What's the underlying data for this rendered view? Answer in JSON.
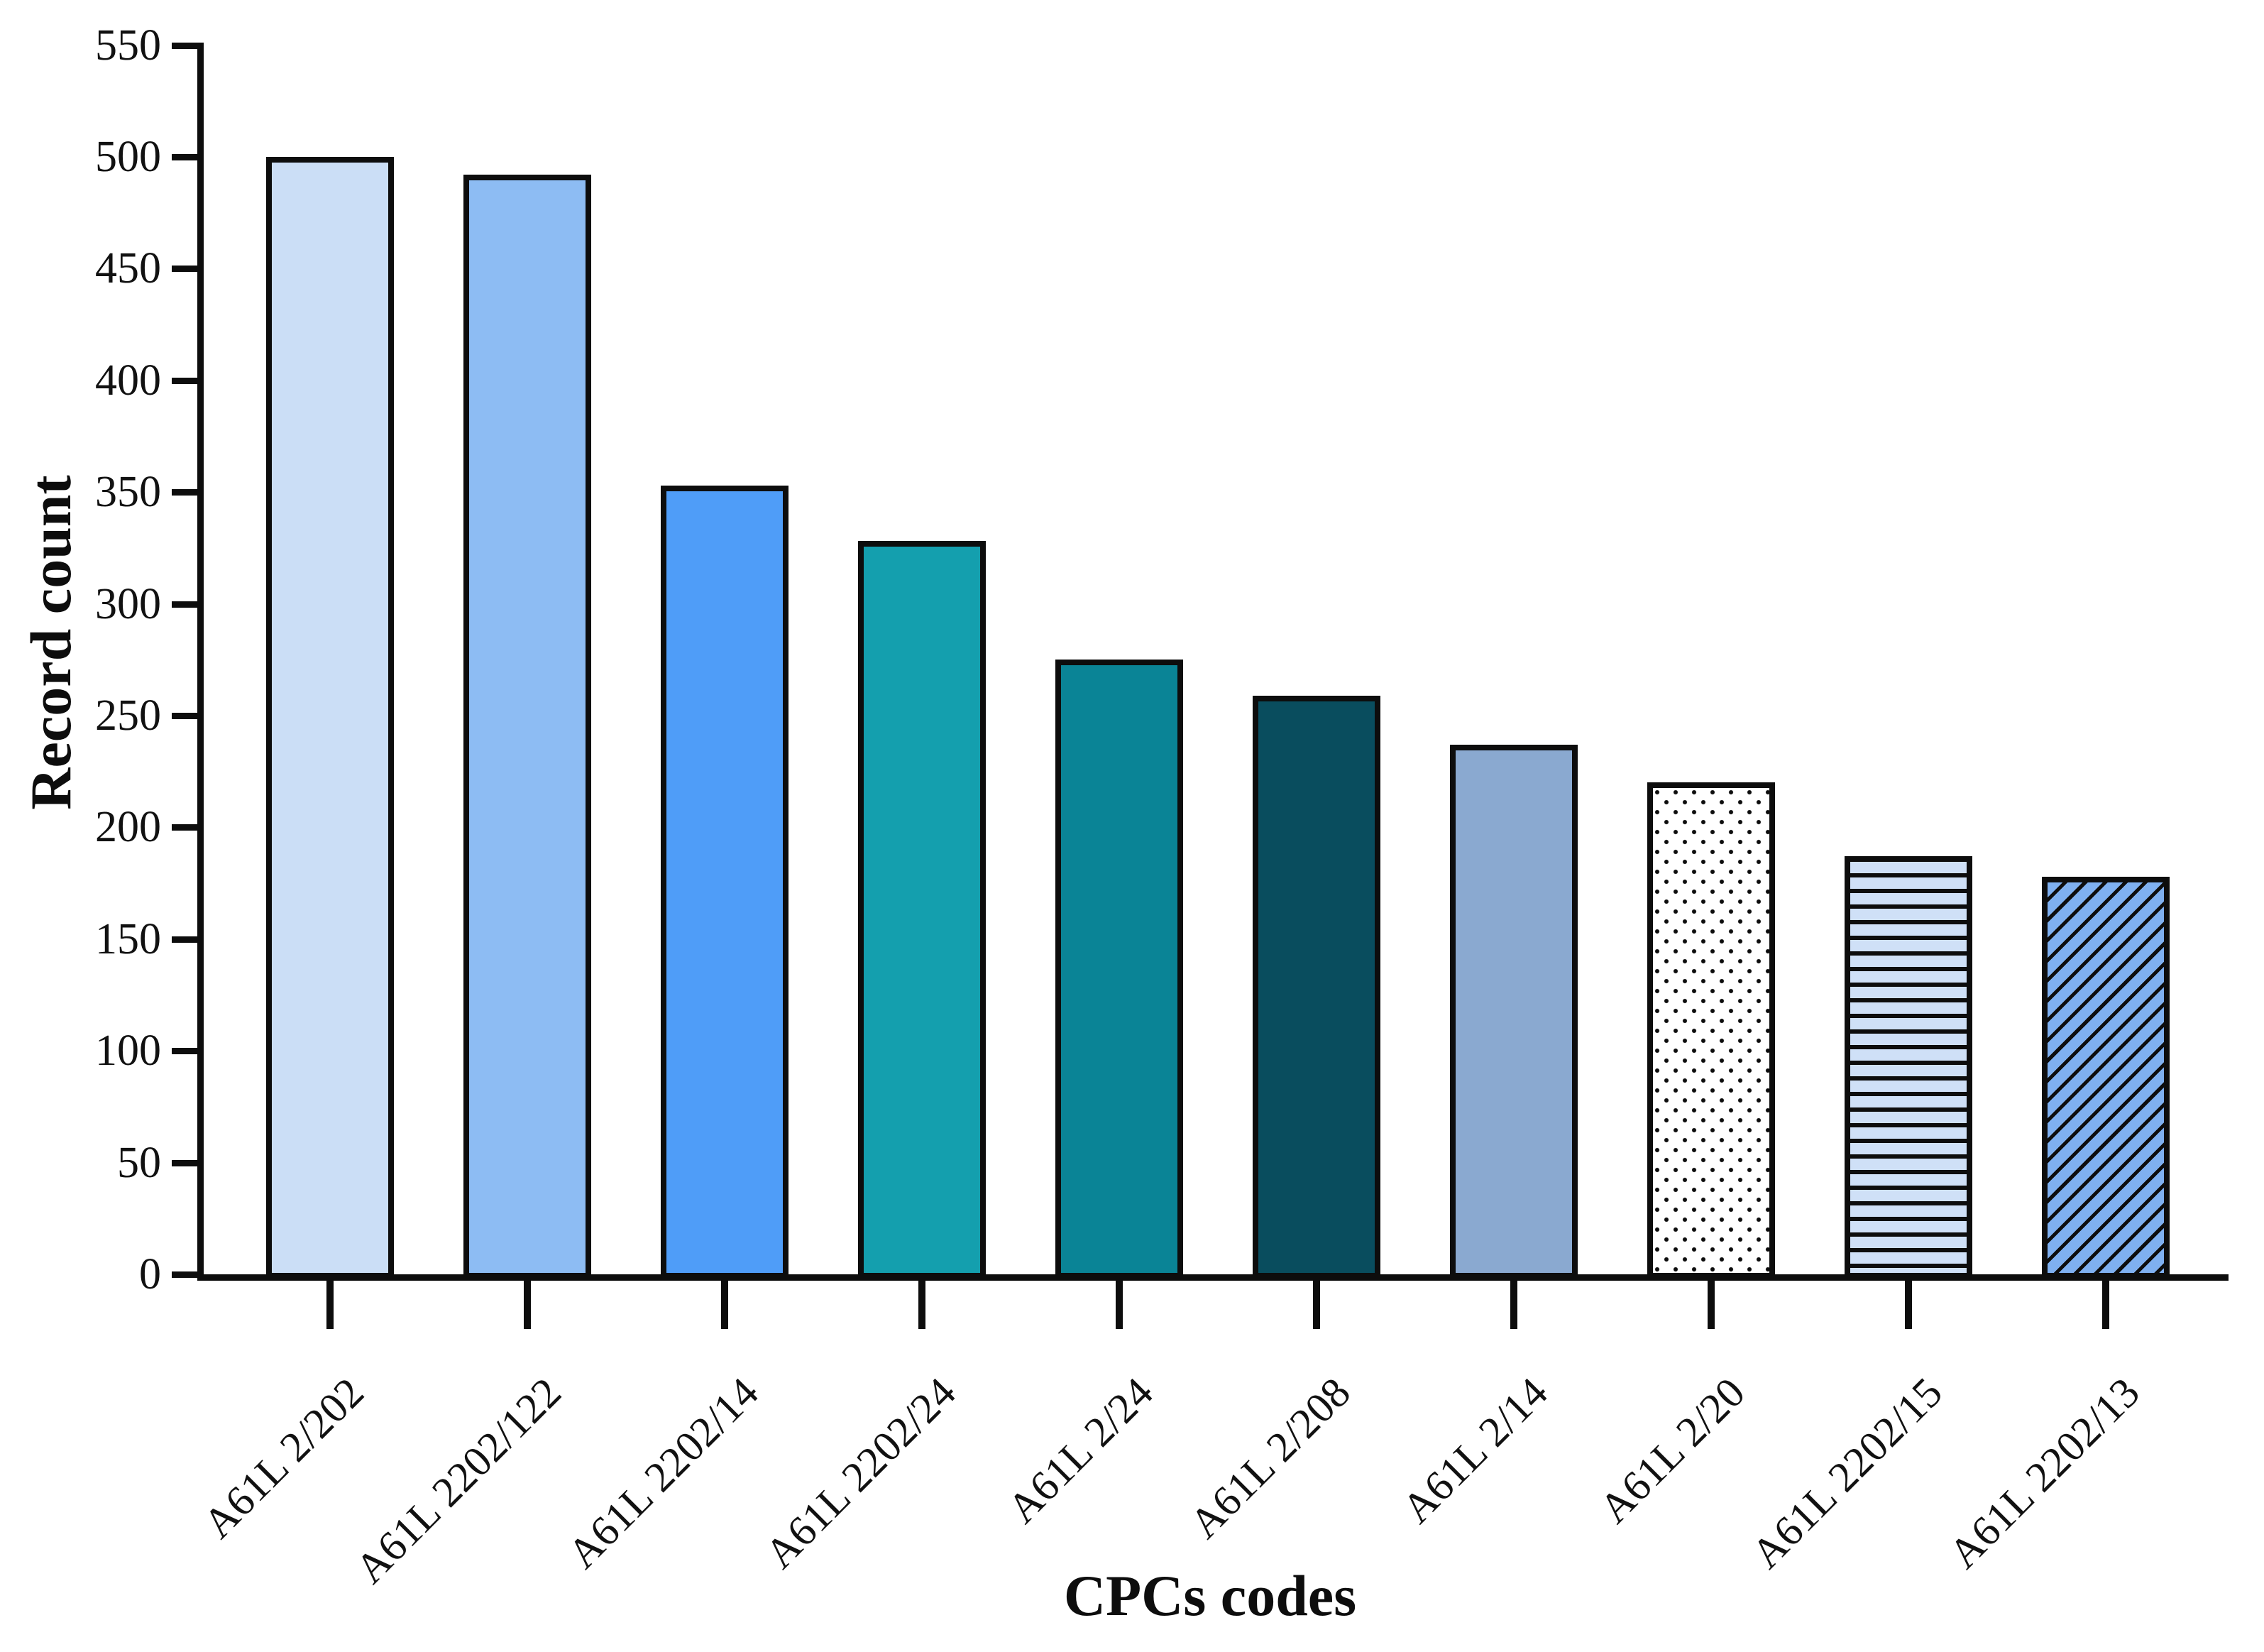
{
  "figure": {
    "background": "#ffffff",
    "outline_color": "#0d0d0d"
  },
  "chart_data": {
    "type": "bar",
    "title": "",
    "xlabel": "CPCs codes",
    "ylabel": "Record count",
    "ylim": [
      0,
      550
    ],
    "ytick_step": 50,
    "y_ticks": [
      0,
      50,
      100,
      150,
      200,
      250,
      300,
      350,
      400,
      450,
      500,
      550
    ],
    "grid": false,
    "legend": "none",
    "categories": [
      "A61L 2/202",
      "A61L 2202/122",
      "A61L 2202/14",
      "A61L 2202/24",
      "A61L 2/24",
      "A61L 2/208",
      "A61L 2/14",
      "A61L 2/20",
      "A61L 2202/15",
      "A61L 2202/13"
    ],
    "values": [
      500,
      492,
      353,
      328,
      275,
      259,
      237,
      220,
      187,
      178
    ],
    "bars": [
      {
        "label": "A61L 2/202",
        "value": 500,
        "fill": "#cbdef6",
        "pattern": "solid"
      },
      {
        "label": "A61L 2202/122",
        "value": 492,
        "fill": "#8dbcf3",
        "pattern": "solid"
      },
      {
        "label": "A61L 2202/14",
        "value": 353,
        "fill": "#4f9df8",
        "pattern": "solid"
      },
      {
        "label": "A61L 2202/24",
        "value": 328,
        "fill": "#149fae",
        "pattern": "solid"
      },
      {
        "label": "A61L 2/24",
        "value": 275,
        "fill": "#0a8496",
        "pattern": "solid"
      },
      {
        "label": "A61L 2/208",
        "value": 259,
        "fill": "#094d5e",
        "pattern": "solid"
      },
      {
        "label": "A61L 2/14",
        "value": 237,
        "fill": "#8aa9d0",
        "pattern": "solid"
      },
      {
        "label": "A61L 2/20",
        "value": 220,
        "fill": "#ffffff",
        "pattern": "dots"
      },
      {
        "label": "A61L 2202/15",
        "value": 187,
        "fill": "#cfe0f7",
        "pattern": "hlines"
      },
      {
        "label": "A61L 2202/13",
        "value": 178,
        "fill": "#7fb0f0",
        "pattern": "diag"
      }
    ],
    "pattern_ink": "#0d0d0d"
  }
}
